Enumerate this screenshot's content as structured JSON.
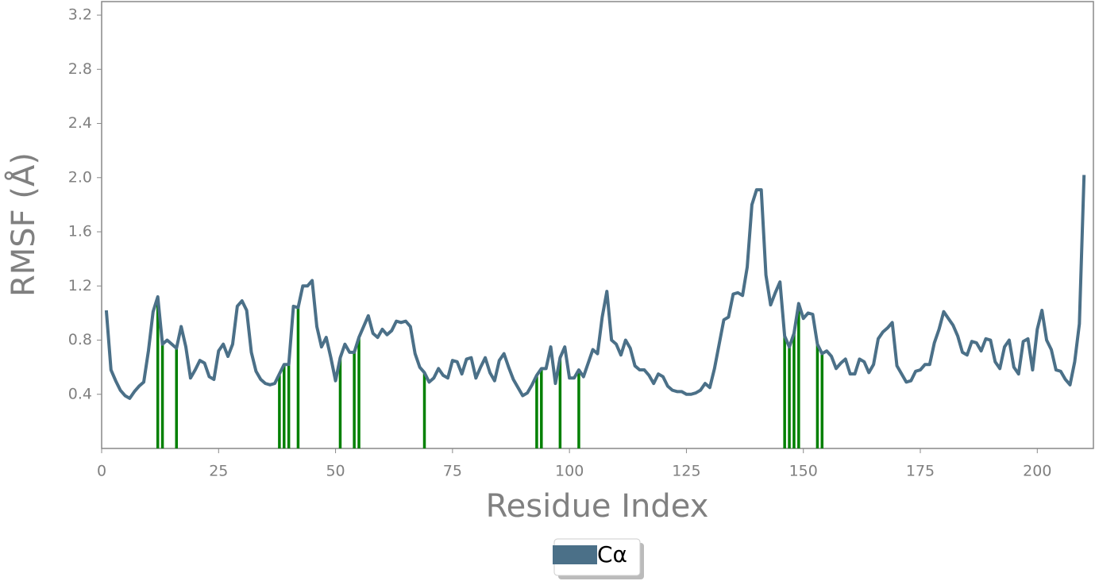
{
  "chart_data": {
    "type": "line",
    "xlabel": "Residue Index",
    "ylabel": "RMSF (Å)",
    "xlim": [
      0,
      212
    ],
    "ylim": [
      0,
      3.3
    ],
    "xticks": [
      0,
      25,
      50,
      75,
      100,
      125,
      150,
      175,
      200
    ],
    "yticks": [
      0.4,
      0.8,
      1.2,
      1.6,
      {
        "value": 2,
        "label": "2.0"
      },
      2.4,
      2.8,
      3.2
    ],
    "legend": "bottom",
    "x": [
      1,
      2,
      3,
      4,
      5,
      6,
      7,
      8,
      9,
      10,
      11,
      12,
      13,
      14,
      15,
      16,
      17,
      18,
      19,
      20,
      21,
      22,
      23,
      24,
      25,
      26,
      27,
      28,
      29,
      30,
      31,
      32,
      33,
      34,
      35,
      36,
      37,
      38,
      39,
      40,
      41,
      42,
      43,
      44,
      45,
      46,
      47,
      48,
      49,
      50,
      51,
      52,
      53,
      54,
      55,
      56,
      57,
      58,
      59,
      60,
      61,
      62,
      63,
      64,
      65,
      66,
      67,
      68,
      69,
      70,
      71,
      72,
      73,
      74,
      75,
      76,
      77,
      78,
      79,
      80,
      81,
      82,
      83,
      84,
      85,
      86,
      87,
      88,
      89,
      90,
      91,
      92,
      93,
      94,
      95,
      96,
      97,
      98,
      99,
      100,
      101,
      102,
      103,
      104,
      105,
      106,
      107,
      108,
      109,
      110,
      111,
      112,
      113,
      114,
      115,
      116,
      117,
      118,
      119,
      120,
      121,
      122,
      123,
      124,
      125,
      126,
      127,
      128,
      129,
      130,
      131,
      132,
      133,
      134,
      135,
      136,
      137,
      138,
      139,
      140,
      141,
      142,
      143,
      144,
      145,
      146,
      147,
      148,
      149,
      150,
      151,
      152,
      153,
      154,
      155,
      156,
      157,
      158,
      159,
      160,
      161,
      162,
      163,
      164,
      165,
      166,
      167,
      168,
      169,
      170,
      171,
      172,
      173,
      174,
      175,
      176,
      177,
      178,
      179,
      180,
      181,
      182,
      183,
      184,
      185,
      186,
      187,
      188,
      189,
      190,
      191,
      192,
      193,
      194,
      195,
      196,
      197,
      198,
      199,
      200,
      201,
      202,
      203,
      204,
      205,
      206,
      207,
      208,
      209,
      210
    ],
    "series": [
      {
        "name": "Cα",
        "color": "#4b7088",
        "values": [
          1.02,
          0.58,
          0.5,
          0.43,
          0.39,
          0.37,
          0.42,
          0.46,
          0.49,
          0.72,
          1.01,
          1.12,
          0.77,
          0.8,
          0.77,
          0.74,
          0.9,
          0.75,
          0.52,
          0.58,
          0.65,
          0.63,
          0.53,
          0.51,
          0.72,
          0.77,
          0.68,
          0.77,
          1.05,
          1.09,
          1.02,
          0.71,
          0.57,
          0.51,
          0.48,
          0.47,
          0.48,
          0.55,
          0.62,
          0.62,
          1.05,
          1.04,
          1.2,
          1.2,
          1.24,
          0.9,
          0.75,
          0.82,
          0.67,
          0.5,
          0.67,
          0.77,
          0.71,
          0.71,
          0.82,
          0.9,
          0.98,
          0.85,
          0.82,
          0.88,
          0.84,
          0.87,
          0.94,
          0.93,
          0.94,
          0.9,
          0.7,
          0.6,
          0.56,
          0.49,
          0.52,
          0.59,
          0.54,
          0.52,
          0.65,
          0.64,
          0.55,
          0.66,
          0.67,
          0.52,
          0.6,
          0.67,
          0.56,
          0.5,
          0.65,
          0.7,
          0.6,
          0.51,
          0.45,
          0.39,
          0.41,
          0.47,
          0.54,
          0.59,
          0.59,
          0.75,
          0.48,
          0.67,
          0.75,
          0.52,
          0.52,
          0.58,
          0.53,
          0.63,
          0.73,
          0.7,
          0.97,
          1.16,
          0.8,
          0.77,
          0.69,
          0.8,
          0.74,
          0.61,
          0.58,
          0.58,
          0.54,
          0.48,
          0.55,
          0.53,
          0.46,
          0.43,
          0.42,
          0.42,
          0.4,
          0.4,
          0.41,
          0.43,
          0.48,
          0.45,
          0.59,
          0.77,
          0.95,
          0.97,
          1.14,
          1.15,
          1.13,
          1.34,
          1.8,
          1.91,
          1.91,
          1.28,
          1.06,
          1.15,
          1.23,
          0.83,
          0.75,
          0.85,
          1.07,
          0.96,
          1.0,
          0.99,
          0.77,
          0.7,
          0.72,
          0.68,
          0.59,
          0.63,
          0.66,
          0.55,
          0.55,
          0.66,
          0.64,
          0.56,
          0.62,
          0.81,
          0.86,
          0.89,
          0.93,
          0.61,
          0.55,
          0.49,
          0.5,
          0.57,
          0.58,
          0.62,
          0.62,
          0.78,
          0.88,
          1.01,
          0.96,
          0.91,
          0.83,
          0.71,
          0.69,
          0.79,
          0.78,
          0.72,
          0.81,
          0.8,
          0.64,
          0.59,
          0.75,
          0.8,
          0.6,
          0.55,
          0.79,
          0.81,
          0.58,
          0.88,
          1.02,
          0.8,
          0.73,
          0.58,
          0.57,
          0.51,
          0.47,
          0.64,
          0.92,
          2.02
        ]
      }
    ],
    "contacts": {
      "color": "#008000",
      "x": [
        12,
        13,
        16,
        38,
        39,
        40,
        42,
        51,
        54,
        55,
        69,
        93,
        94,
        98,
        102,
        146,
        147,
        148,
        149,
        153,
        154
      ],
      "values": [
        1.12,
        0.77,
        0.74,
        0.55,
        0.62,
        0.62,
        1.04,
        0.67,
        0.71,
        0.82,
        0.56,
        0.54,
        0.59,
        0.67,
        0.58,
        0.83,
        0.75,
        0.85,
        1.07,
        0.77,
        0.7
      ]
    }
  }
}
